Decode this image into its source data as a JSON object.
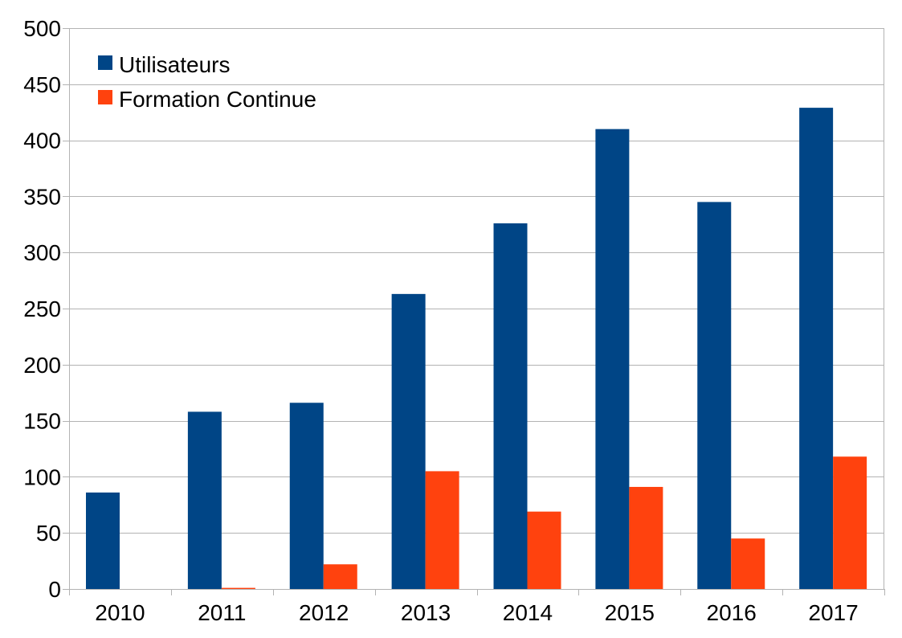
{
  "chart_data": {
    "type": "bar",
    "categories": [
      "2010",
      "2011",
      "2012",
      "2013",
      "2014",
      "2015",
      "2016",
      "2017"
    ],
    "series": [
      {
        "name": "Utilisateurs",
        "color": "#004586",
        "values": [
          86,
          158,
          166,
          263,
          326,
          410,
          345,
          429
        ]
      },
      {
        "name": "Formation Continue",
        "color": "#ff420e",
        "values": [
          0,
          1,
          22,
          105,
          69,
          91,
          45,
          118
        ]
      }
    ],
    "ylim": [
      0,
      500
    ],
    "yticks": [
      "0",
      "50",
      "100",
      "150",
      "200",
      "250",
      "300",
      "350",
      "400",
      "450",
      "500"
    ],
    "grid": true,
    "legend": "top-left",
    "title": "",
    "xlabel": "",
    "ylabel": ""
  }
}
